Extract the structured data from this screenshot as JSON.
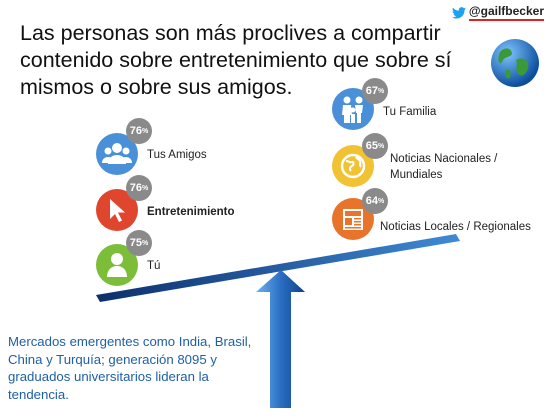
{
  "handle": {
    "text": "@gailfbecker"
  },
  "title": "Las personas son más proclives a compartir contenido sobre entretenimiento que sobre sí mismos o sobre sus amigos.",
  "left_items": [
    {
      "pct": "76",
      "unit": "%",
      "label": "Tus Amigos",
      "icon": "people-icon",
      "color": "#4a90d9"
    },
    {
      "pct": "76",
      "unit": "%",
      "label": "Entretenimiento",
      "icon": "cursor-icon",
      "color": "#e0452e"
    },
    {
      "pct": "75",
      "unit": "%",
      "label": "Tú",
      "icon": "person-icon",
      "color": "#7cbd3a"
    }
  ],
  "right_items": [
    {
      "pct": "67",
      "unit": "%",
      "label": "Tu Familia",
      "icon": "family-icon",
      "color": "#4a90d9"
    },
    {
      "pct": "65",
      "unit": "%",
      "label": "Noticias Nacionales / Mundiales",
      "icon": "globe-icon",
      "color": "#f1c232"
    },
    {
      "pct": "64",
      "unit": "%",
      "label": "Noticias Locales / Regionales",
      "icon": "news-icon",
      "color": "#e8742c"
    }
  ],
  "footnote": "Mercados emergentes como India, Brasil, China y Turquía; generación 8095 y graduados universitarios lideran la tendencia.",
  "colors": {
    "accent_blue": "#1f5fa6",
    "badge_gray": "#8a8a8a"
  }
}
